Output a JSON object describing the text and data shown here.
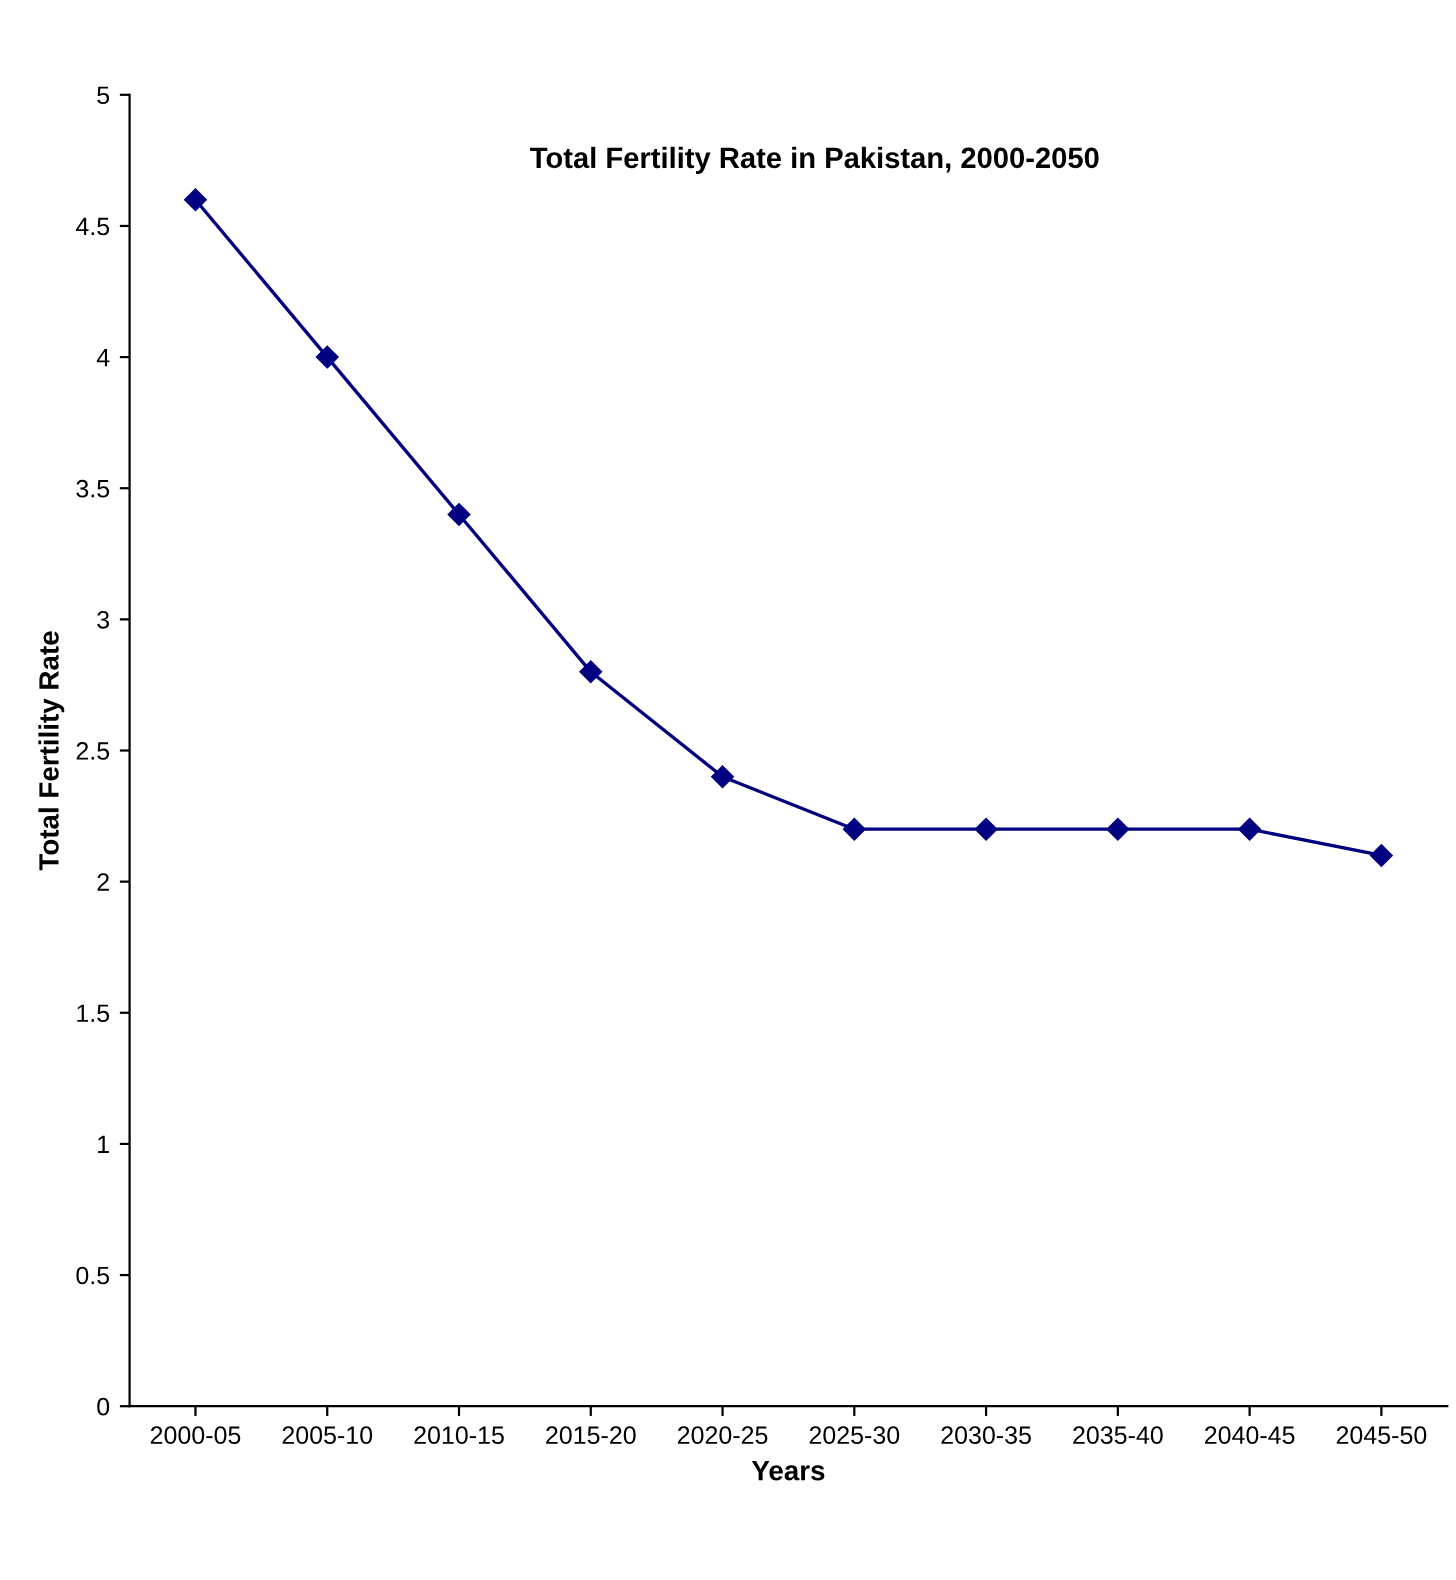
{
  "chart_data": {
    "type": "line",
    "title": "Total Fertility Rate in Pakistan, 2000-2050",
    "xlabel": "Years",
    "ylabel": "Total Fertility Rate",
    "categories": [
      "2000-05",
      "2005-10",
      "2010-15",
      "2015-20",
      "2020-25",
      "2025-30",
      "2030-35",
      "2035-40",
      "2040-45",
      "2045-50"
    ],
    "series": [
      {
        "color": "#000080",
        "values": [
          4.6,
          4.0,
          3.4,
          2.8,
          2.4,
          2.2,
          2.2,
          2.2,
          2.2,
          2.1
        ]
      }
    ],
    "ylim": [
      0,
      5
    ],
    "yticks": [
      0,
      0.5,
      1,
      1.5,
      2,
      2.5,
      3,
      3.5,
      4,
      4.5,
      5
    ],
    "grid": false,
    "marker": "diamond",
    "line_style": "solid"
  }
}
